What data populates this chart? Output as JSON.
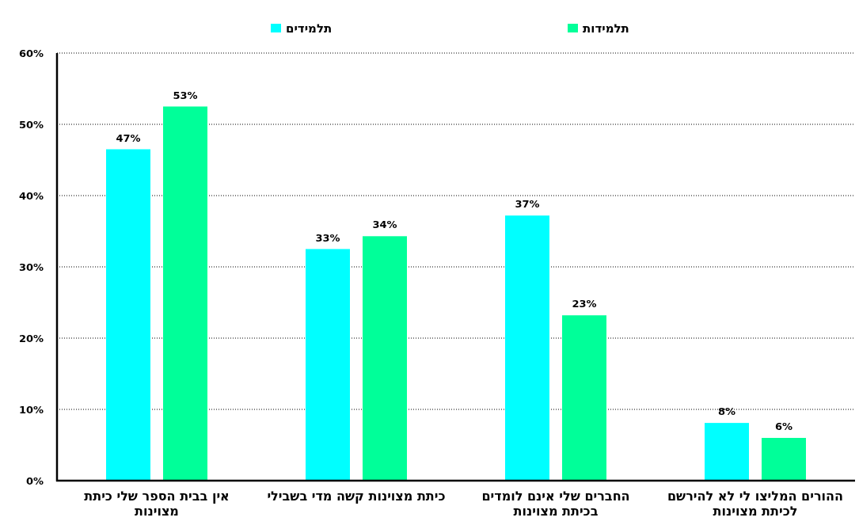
{
  "chart_data": {
    "type": "bar",
    "categories": [
      "אין בבית הספר שלי כיתת מצוינות",
      "כיתת מצוינות קשה מדי בשבילי",
      "החברים שלי אינם לומדים בכיתת מצוינות",
      "ההורים המליצו לי לא להירשם לכיתת מצוינות"
    ],
    "series": [
      {
        "name": "תלמידים",
        "color": "#00ffff",
        "values": [
          46.5,
          32.5,
          37.2,
          8.1
        ],
        "value_labels": [
          "47%",
          "33%",
          "37%",
          "8%"
        ]
      },
      {
        "name": "תלמידות",
        "color": "#00ff99",
        "values": [
          52.5,
          34.3,
          23.2,
          6.0
        ],
        "value_labels": [
          "53%",
          "34%",
          "23%",
          "6%"
        ]
      }
    ],
    "ylim": [
      0,
      60
    ],
    "yticks": [
      {
        "value": 0,
        "label": "0%"
      },
      {
        "value": 10,
        "label": "10%"
      },
      {
        "value": 20,
        "label": "20%"
      },
      {
        "value": 30,
        "label": "30%"
      },
      {
        "value": 40,
        "label": "40%"
      },
      {
        "value": 50,
        "label": "50%"
      },
      {
        "value": 60,
        "label": "60%"
      }
    ],
    "grid": "y",
    "legend": "top"
  }
}
